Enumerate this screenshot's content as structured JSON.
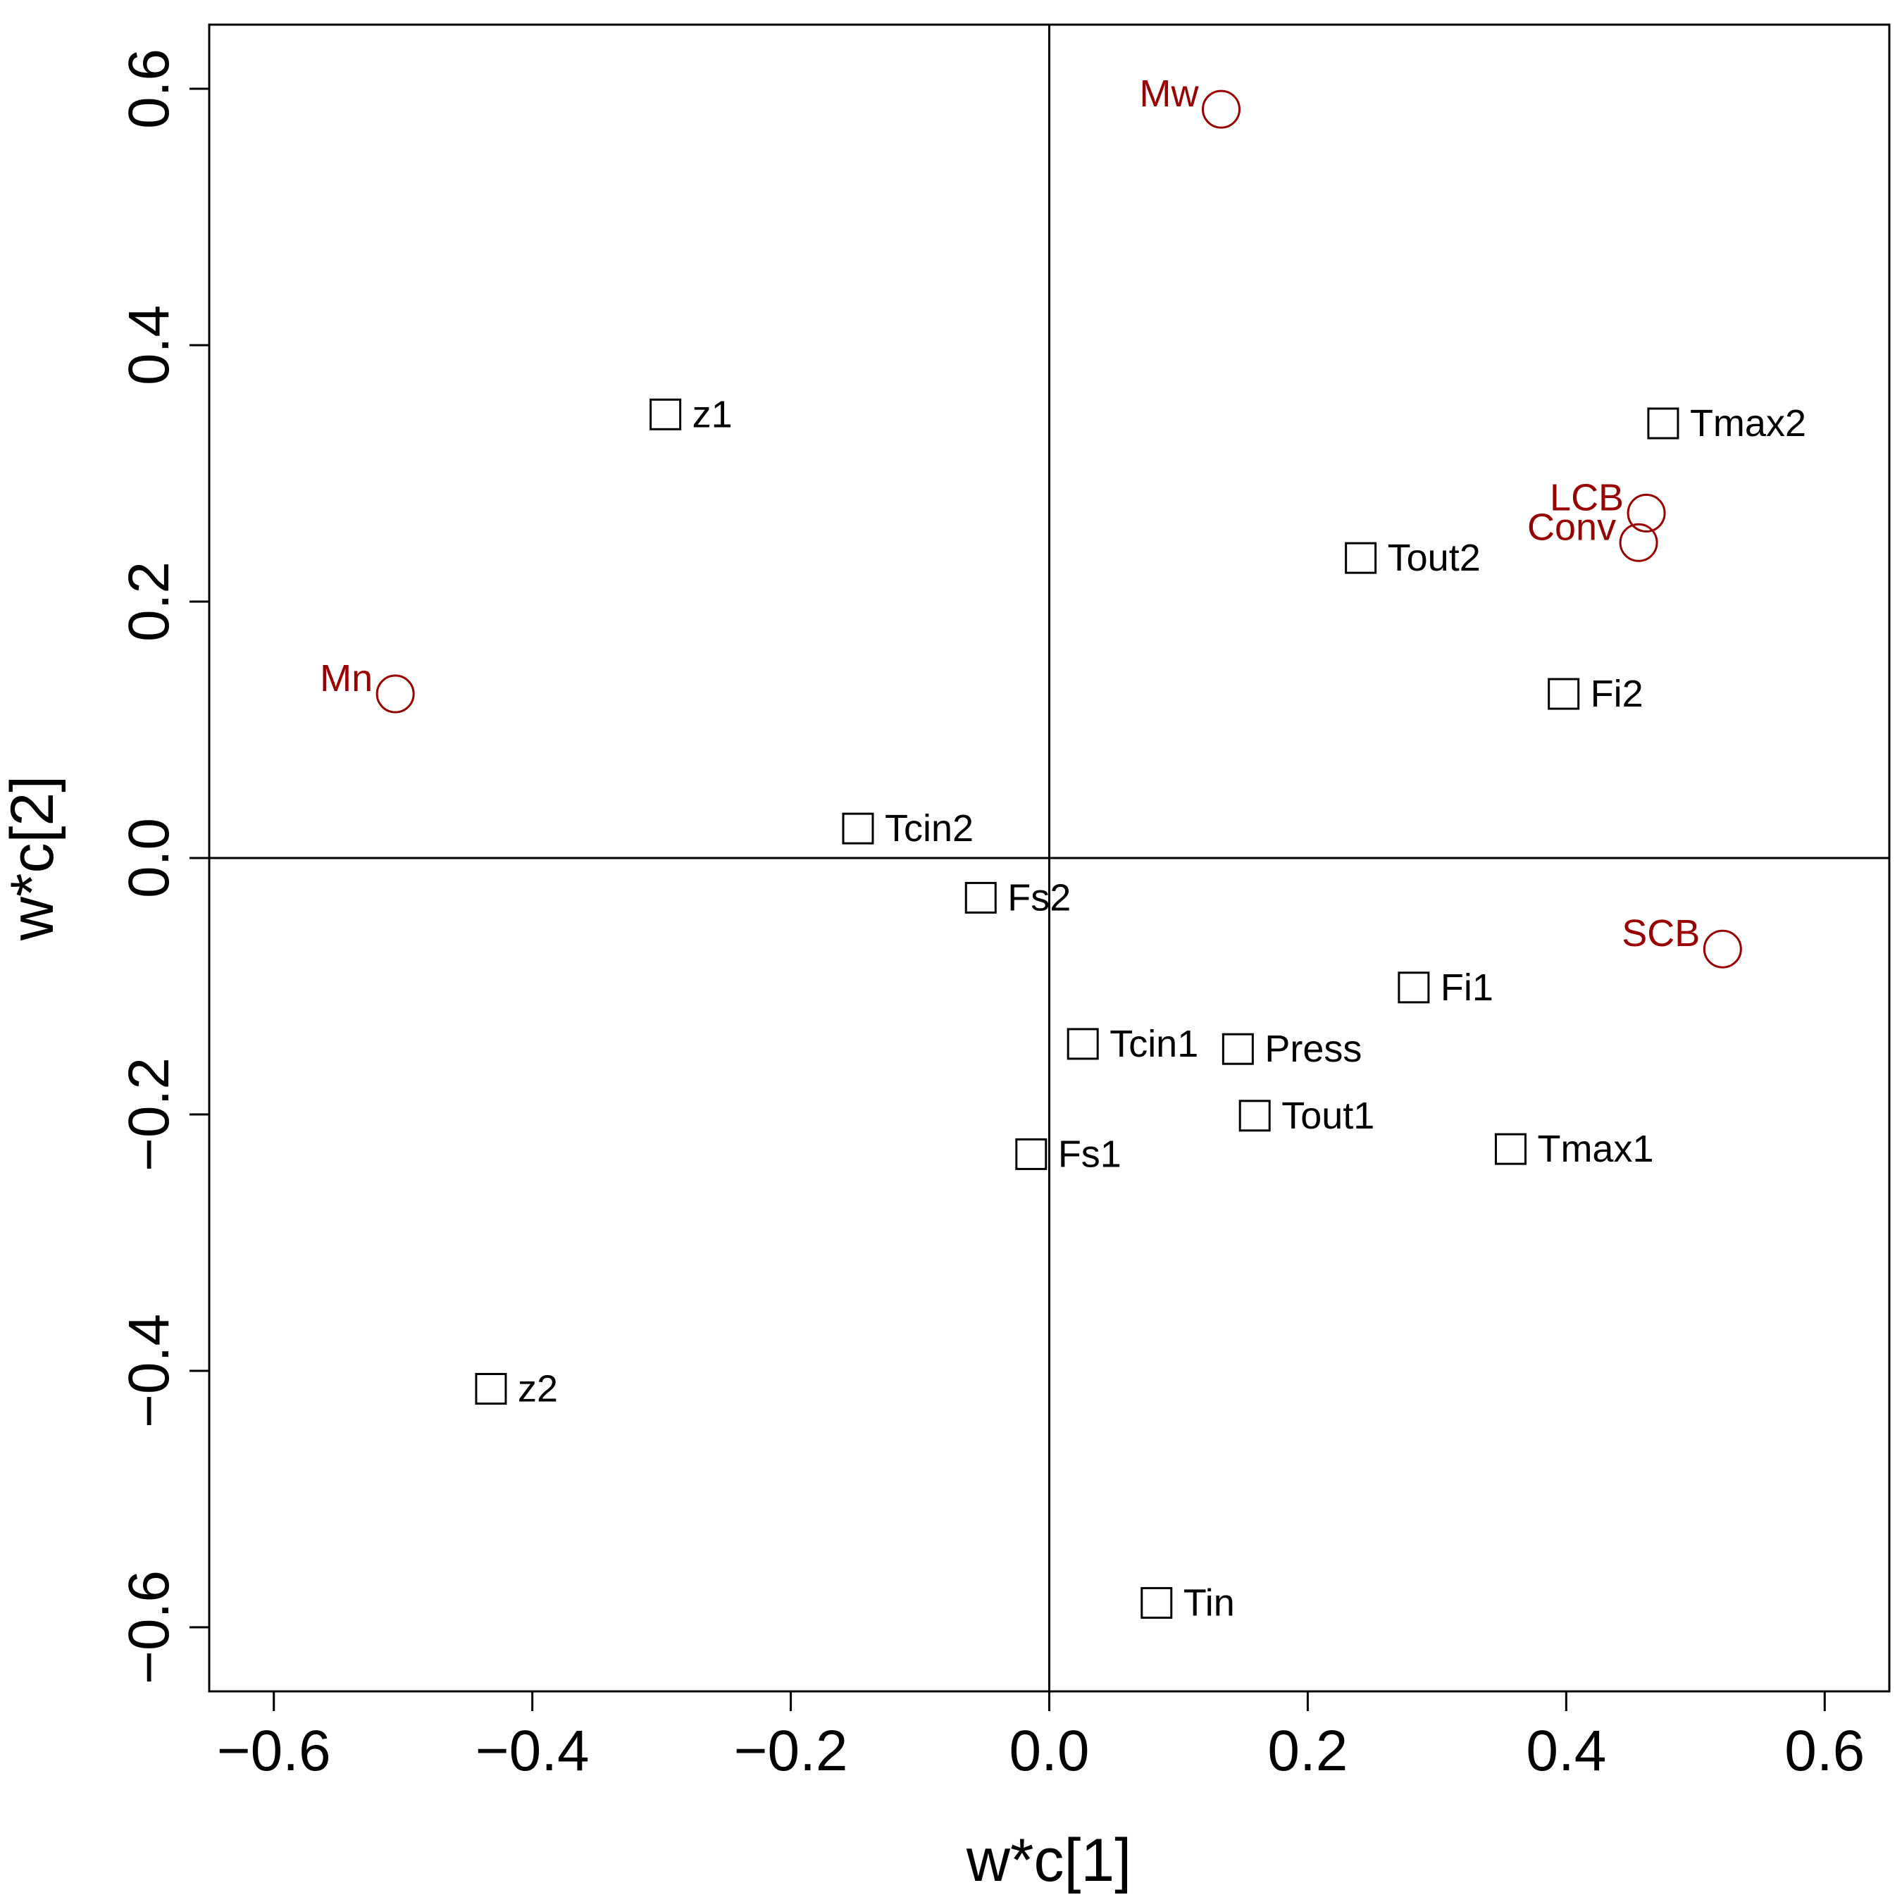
{
  "chart_data": {
    "type": "scatter",
    "title": "",
    "xlabel": "w*c[1]",
    "ylabel": "w*c[2]",
    "xlim": [
      -0.65,
      0.65
    ],
    "ylim": [
      -0.65,
      0.65
    ],
    "xticks": [
      "−0.6",
      "−0.4",
      "−0.2",
      "0.0",
      "0.2",
      "0.4",
      "0.6"
    ],
    "yticks": [
      "−0.6",
      "−0.4",
      "−0.2",
      "0.0",
      "0.2",
      "0.4",
      "0.6"
    ],
    "xtick_values": [
      -0.6,
      -0.4,
      -0.2,
      0.0,
      0.2,
      0.4,
      0.6
    ],
    "ytick_values": [
      -0.6,
      -0.4,
      -0.2,
      0.0,
      0.2,
      0.4,
      0.6
    ],
    "reference_lines": {
      "x": 0,
      "y": 0
    },
    "grid": false,
    "series": [
      {
        "marker": "square",
        "color": "#000000",
        "points": [
          {
            "label": "z1",
            "x": -0.297,
            "y": 0.346
          },
          {
            "label": "Tmax2",
            "x": 0.475,
            "y": 0.339
          },
          {
            "label": "Tout2",
            "x": 0.241,
            "y": 0.234
          },
          {
            "label": "Fi2",
            "x": 0.398,
            "y": 0.128
          },
          {
            "label": "Tcin2",
            "x": -0.148,
            "y": 0.023
          },
          {
            "label": "Fs2",
            "x": -0.053,
            "y": -0.031
          },
          {
            "label": "Fi1",
            "x": 0.282,
            "y": -0.101
          },
          {
            "label": "Tcin1",
            "x": 0.026,
            "y": -0.145
          },
          {
            "label": "Press",
            "x": 0.146,
            "y": -0.149
          },
          {
            "label": "Tout1",
            "x": 0.159,
            "y": -0.201
          },
          {
            "label": "Tmax1",
            "x": 0.357,
            "y": -0.227
          },
          {
            "label": "Fs1",
            "x": -0.014,
            "y": -0.231
          },
          {
            "label": "z2",
            "x": -0.432,
            "y": -0.414
          },
          {
            "label": "Tin",
            "x": 0.083,
            "y": -0.581
          }
        ]
      },
      {
        "marker": "circle",
        "color": "#990000",
        "points": [
          {
            "label": "Mw",
            "x": 0.133,
            "y": 0.584
          },
          {
            "label": "LCB",
            "x": 0.462,
            "y": 0.269
          },
          {
            "label": "Conv",
            "x": 0.456,
            "y": 0.246
          },
          {
            "label": "Mn",
            "x": -0.506,
            "y": 0.128
          },
          {
            "label": "SCB",
            "x": 0.521,
            "y": -0.071
          }
        ]
      }
    ]
  }
}
